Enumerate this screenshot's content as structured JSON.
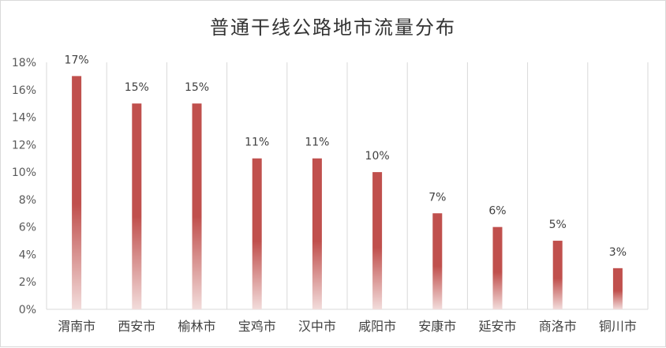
{
  "chart_data": {
    "type": "bar",
    "title": "普通干线公路地市流量分布",
    "categories": [
      "渭南市",
      "西安市",
      "榆林市",
      "宝鸡市",
      "汉中市",
      "咸阳市",
      "安康市",
      "延安市",
      "商洛市",
      "铜川市"
    ],
    "values": [
      17,
      15,
      15,
      11,
      11,
      10,
      7,
      6,
      5,
      3
    ],
    "data_labels": [
      "17%",
      "15%",
      "15%",
      "11%",
      "11%",
      "10%",
      "7%",
      "6%",
      "5%",
      "3%"
    ],
    "y_ticks": [
      "0%",
      "2%",
      "4%",
      "6%",
      "8%",
      "10%",
      "12%",
      "14%",
      "16%",
      "18%"
    ],
    "ylim": [
      0,
      18
    ],
    "xlabel": "",
    "ylabel": "",
    "grid": "vertical separators between categories",
    "bar_color": "#c0504d",
    "bar_fade_color": "#f2dcdb"
  }
}
